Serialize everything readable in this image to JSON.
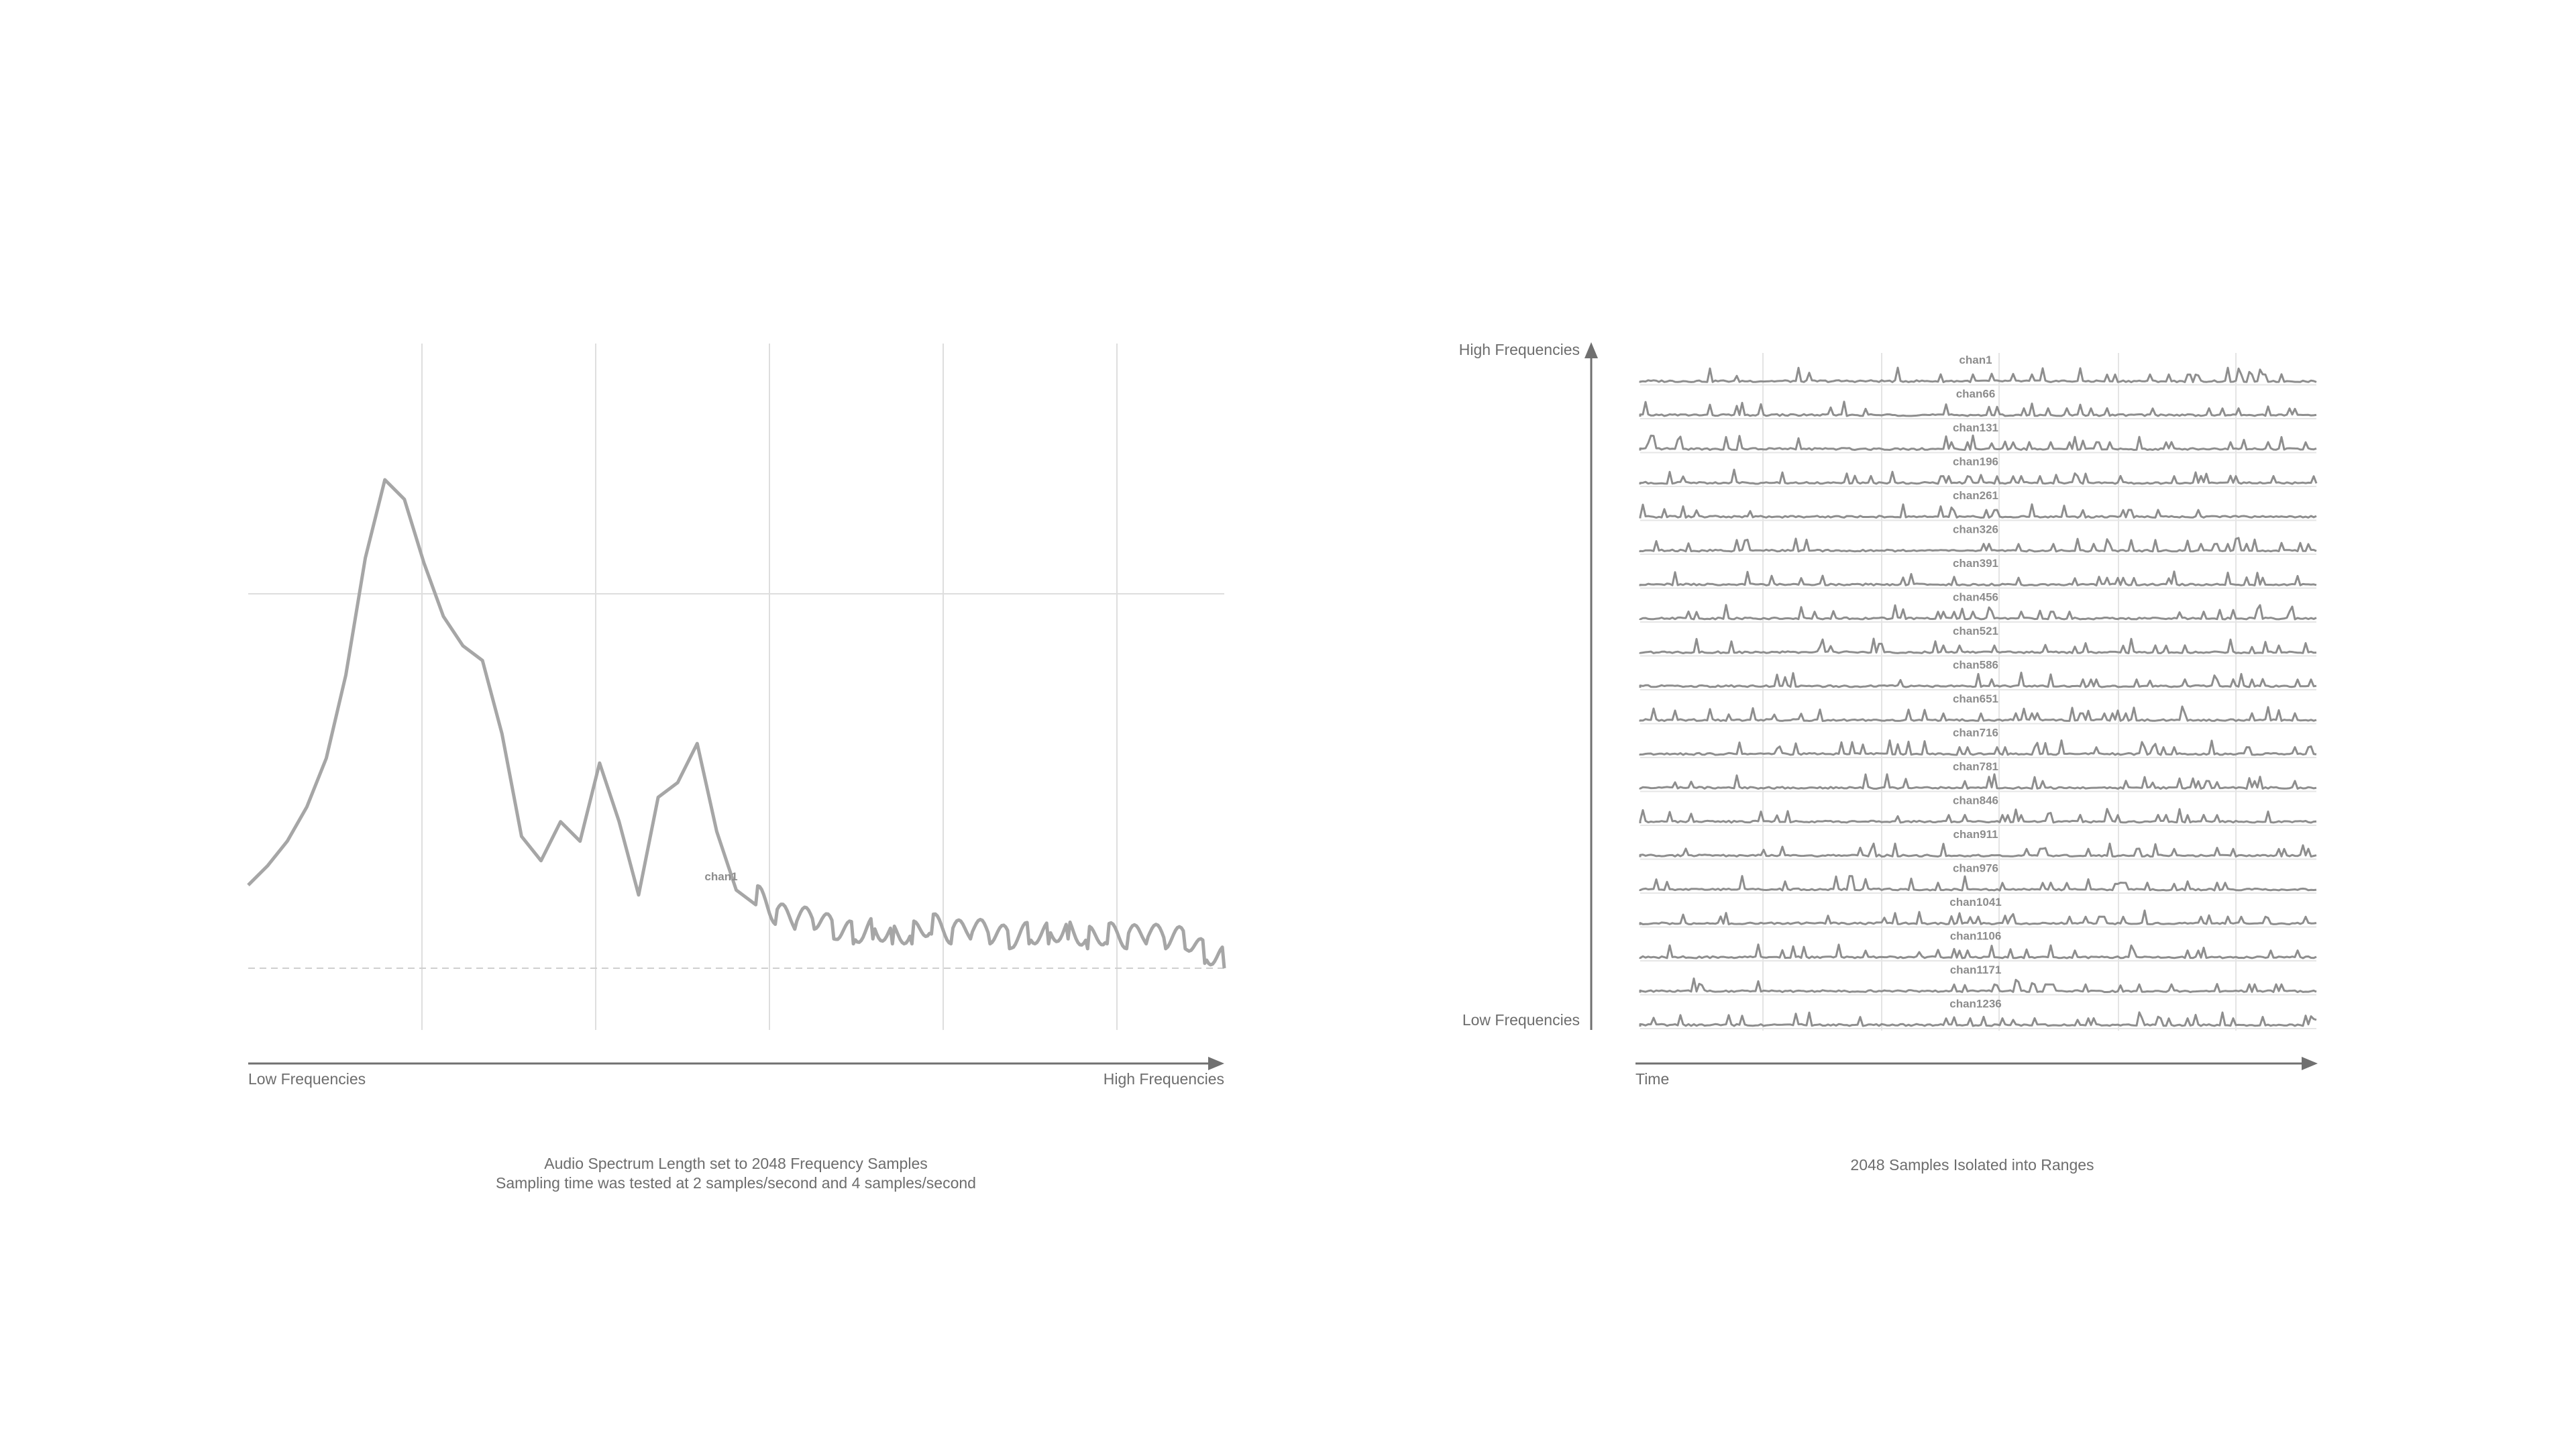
{
  "chart_data": [
    {
      "type": "line",
      "title": "",
      "xlabel": "",
      "ylabel": "",
      "x_axis_labels": {
        "left": "Low Frequencies",
        "right": "High Frequencies"
      },
      "annotation": "chan1",
      "grid": true,
      "caption": [
        "Audio Spectrum Length set to 2048 Frequency Samples",
        "Sampling time was tested at 2 samples/second and 4 samples/second"
      ],
      "x": [
        0,
        2,
        4,
        6,
        8,
        10,
        12,
        14,
        16,
        18,
        20,
        22,
        24,
        26,
        28,
        30,
        32,
        34,
        36,
        38,
        40,
        42,
        44,
        46,
        48,
        50,
        52,
        54,
        56,
        58,
        60,
        62,
        64,
        66,
        68,
        70,
        72,
        74,
        76,
        78,
        80,
        82,
        84,
        86,
        88,
        90,
        92,
        94,
        96,
        98,
        100
      ],
      "values": [
        0.17,
        0.21,
        0.26,
        0.33,
        0.43,
        0.6,
        0.84,
        1.0,
        0.96,
        0.83,
        0.72,
        0.66,
        0.63,
        0.48,
        0.27,
        0.22,
        0.3,
        0.26,
        0.42,
        0.3,
        0.15,
        0.35,
        0.38,
        0.46,
        0.28,
        0.16,
        0.13,
        0.09,
        0.08,
        0.08,
        0.06,
        0.05,
        0.06,
        0.05,
        0.05,
        0.07,
        0.05,
        0.06,
        0.05,
        0.04,
        0.05,
        0.05,
        0.06,
        0.04,
        0.05,
        0.04,
        0.05,
        0.04,
        0.04,
        0.01,
        0.0
      ],
      "ylim": [
        0,
        1.1
      ]
    },
    {
      "type": "line",
      "title": "",
      "x_axis_label": "Time",
      "y_axis_labels": {
        "top": "High Frequencies",
        "bottom": "Low Frequencies"
      },
      "grid": true,
      "caption": "2048 Samples Isolated into Ranges",
      "series": [
        {
          "name": "chan1"
        },
        {
          "name": "chan66"
        },
        {
          "name": "chan131"
        },
        {
          "name": "chan196"
        },
        {
          "name": "chan261"
        },
        {
          "name": "chan326"
        },
        {
          "name": "chan391"
        },
        {
          "name": "chan456"
        },
        {
          "name": "chan521"
        },
        {
          "name": "chan586"
        },
        {
          "name": "chan651"
        },
        {
          "name": "chan716"
        },
        {
          "name": "chan781"
        },
        {
          "name": "chan846"
        },
        {
          "name": "chan911"
        },
        {
          "name": "chan976"
        },
        {
          "name": "chan1041"
        },
        {
          "name": "chan1106"
        },
        {
          "name": "chan1171"
        },
        {
          "name": "chan1236"
        }
      ]
    }
  ]
}
